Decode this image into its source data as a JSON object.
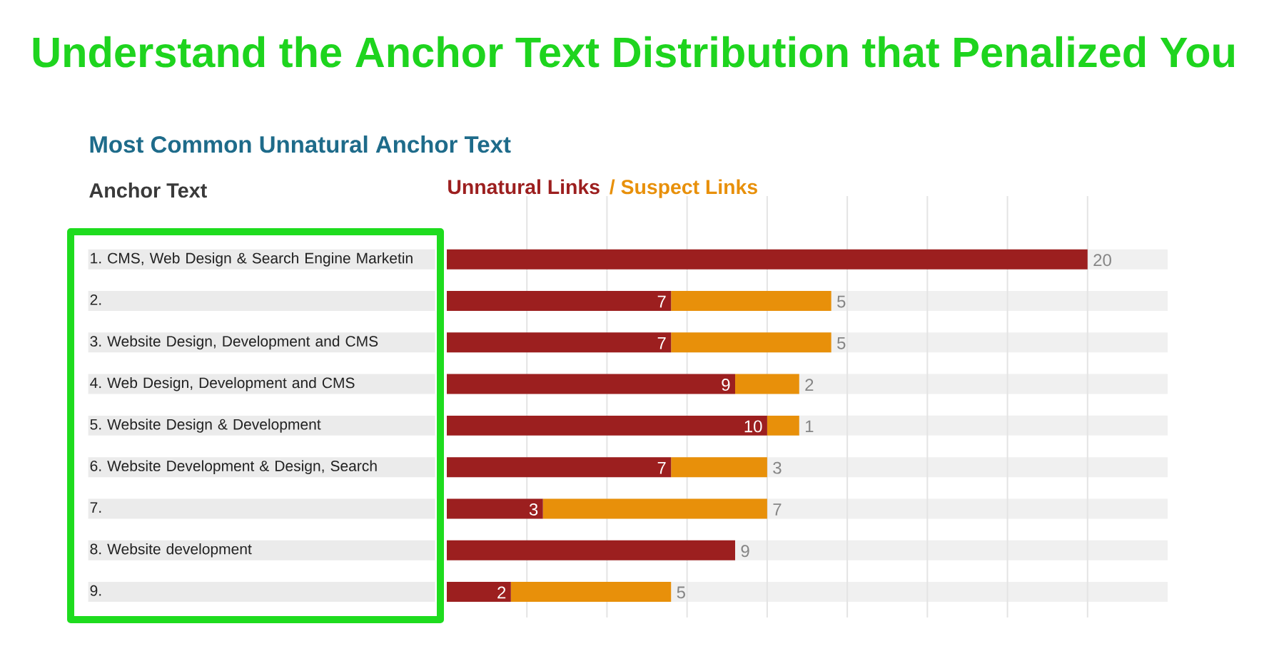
{
  "chart_data": {
    "type": "bar",
    "orientation": "horizontal",
    "stacked": true,
    "title": "Understand the Anchor Text Distribution that Penalized You",
    "subtitle": "Most Common Unnatural Anchor Text",
    "ylabel": "Anchor Text",
    "categories": [
      "1. CMS, Web Design & Search Engine Marketin",
      "2.",
      "3. Website Design, Development and CMS",
      "4. Web Design, Development and CMS",
      "5. Website Design & Development",
      "6. Website Development & Design, Search",
      "7.",
      "8. Website development",
      "9."
    ],
    "series": [
      {
        "name": "Unnatural Links",
        "color": "#9c1f1f",
        "values": [
          20,
          7,
          7,
          9,
          10,
          7,
          3,
          9,
          2
        ]
      },
      {
        "name": "/ Suspect Links",
        "color": "#e8900a",
        "values": [
          null,
          5,
          5,
          2,
          1,
          3,
          7,
          null,
          5
        ]
      }
    ],
    "xlim": [
      0,
      22.5
    ],
    "xticks": [
      {
        "value": 2.5,
        "label": null
      },
      {
        "value": 5,
        "label": null
      },
      {
        "value": 7.5,
        "label": null
      },
      {
        "value": 10,
        "label": null
      },
      {
        "value": 12.5,
        "label": null
      },
      {
        "value": 15,
        "label": null
      },
      {
        "value": 17.5,
        "label": null
      },
      {
        "value": 20,
        "label": null
      }
    ],
    "tick_labels": "y",
    "grid": "x",
    "legend": "top left",
    "data_labels": true
  }
}
